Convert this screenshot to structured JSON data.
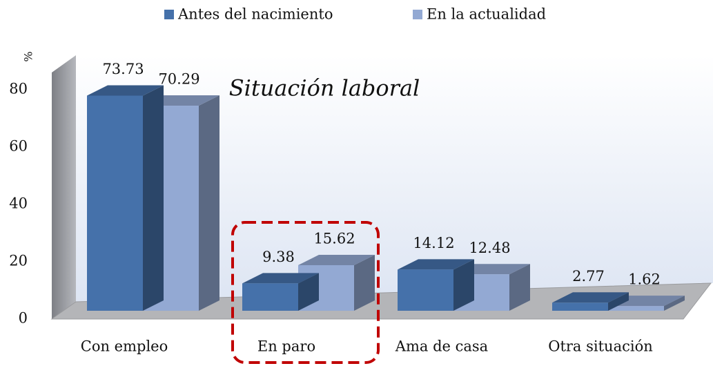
{
  "chart_data": {
    "type": "bar3d",
    "title": "Situación laboral",
    "y_label": "%",
    "categories": [
      "Con empleo",
      "En paro",
      "Ama de casa",
      "Otra situación"
    ],
    "series": [
      {
        "name": "Antes del nacimiento",
        "color": "#4571aa",
        "values": [
          73.73,
          9.38,
          14.12,
          2.77
        ]
      },
      {
        "name": "En la actualidad",
        "color": "#93a9d3",
        "values": [
          70.29,
          15.62,
          12.48,
          1.62
        ]
      }
    ],
    "ylim": [
      0,
      80
    ],
    "yticks": [
      0,
      20,
      40,
      60,
      80
    ],
    "legend": "top"
  }
}
